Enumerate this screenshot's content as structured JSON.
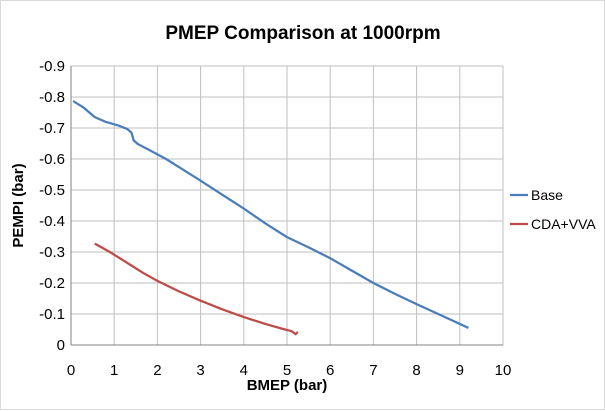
{
  "chart_data": {
    "type": "line",
    "title": "PMEP Comparison at 1000rpm",
    "xlabel": "BMEP (bar)",
    "ylabel": "PEMPI (bar)",
    "xlim": [
      0,
      10
    ],
    "ylim": [
      0,
      -0.9
    ],
    "y_axis_reversed": true,
    "x_ticks": [
      0,
      1,
      2,
      3,
      4,
      5,
      6,
      7,
      8,
      9,
      10
    ],
    "y_ticks": [
      0,
      -0.1,
      -0.2,
      -0.3,
      -0.4,
      -0.5,
      -0.6,
      -0.7,
      -0.8,
      -0.9
    ],
    "x_tick_labels": [
      "0",
      "1",
      "2",
      "3",
      "4",
      "5",
      "6",
      "7",
      "8",
      "9",
      "10"
    ],
    "y_tick_labels": [
      "0",
      "-0.1",
      "-0.2",
      "-0.3",
      "-0.4",
      "-0.5",
      "-0.6",
      "-0.7",
      "-0.8",
      "-0.9"
    ],
    "grid": true,
    "legend_position": "right",
    "series": [
      {
        "name": "Base",
        "color": "#4a7ebb",
        "points": [
          [
            0.05,
            -0.787
          ],
          [
            0.3,
            -0.765
          ],
          [
            0.55,
            -0.735
          ],
          [
            0.8,
            -0.72
          ],
          [
            1.1,
            -0.708
          ],
          [
            1.3,
            -0.697
          ],
          [
            1.4,
            -0.685
          ],
          [
            1.45,
            -0.66
          ],
          [
            1.55,
            -0.648
          ],
          [
            1.8,
            -0.63
          ],
          [
            2.2,
            -0.6
          ],
          [
            2.6,
            -0.565
          ],
          [
            3.0,
            -0.53
          ],
          [
            3.5,
            -0.485
          ],
          [
            4.0,
            -0.44
          ],
          [
            4.5,
            -0.392
          ],
          [
            5.0,
            -0.348
          ],
          [
            5.5,
            -0.315
          ],
          [
            6.0,
            -0.28
          ],
          [
            6.5,
            -0.24
          ],
          [
            7.0,
            -0.2
          ],
          [
            7.5,
            -0.165
          ],
          [
            8.0,
            -0.132
          ],
          [
            8.5,
            -0.1
          ],
          [
            9.0,
            -0.068
          ],
          [
            9.2,
            -0.055
          ]
        ]
      },
      {
        "name": "CDA+VVA",
        "color": "#be4b48",
        "points": [
          [
            0.55,
            -0.327
          ],
          [
            0.9,
            -0.3
          ],
          [
            1.3,
            -0.265
          ],
          [
            1.7,
            -0.23
          ],
          [
            2.0,
            -0.207
          ],
          [
            2.5,
            -0.173
          ],
          [
            3.0,
            -0.143
          ],
          [
            3.5,
            -0.115
          ],
          [
            4.0,
            -0.09
          ],
          [
            4.5,
            -0.068
          ],
          [
            4.9,
            -0.052
          ],
          [
            5.1,
            -0.045
          ],
          [
            5.15,
            -0.04
          ],
          [
            5.2,
            -0.035
          ],
          [
            5.25,
            -0.042
          ]
        ]
      }
    ]
  }
}
